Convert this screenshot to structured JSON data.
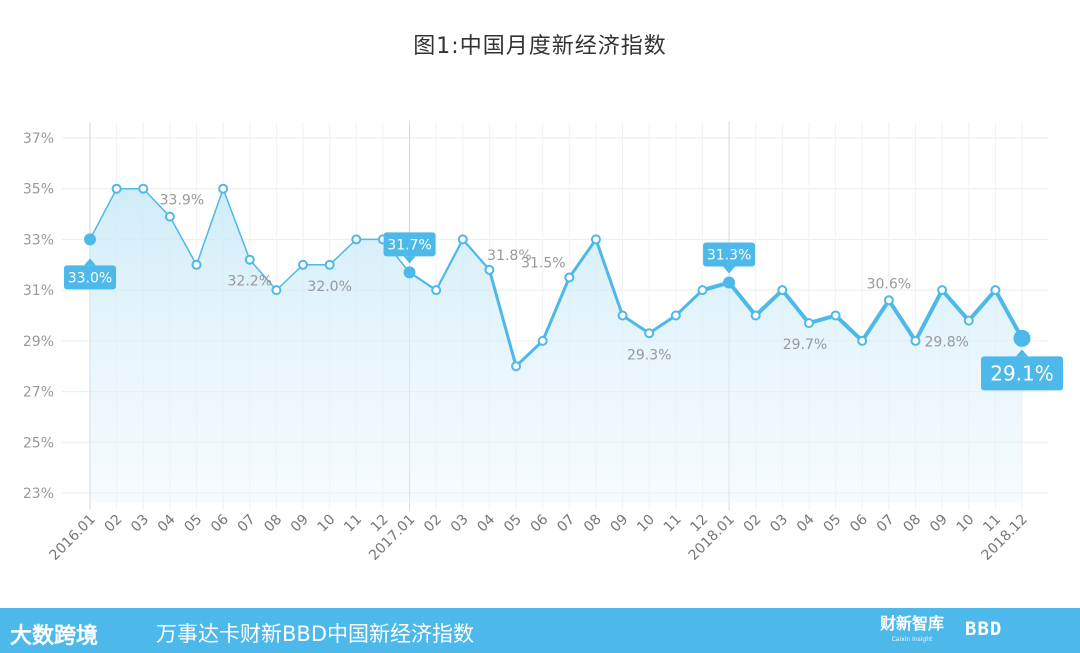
{
  "title": "图1:中国月度新经济指数",
  "footer": {
    "brand": "大数跨境",
    "subtitle": "万事达卡财新BBD中国新经济指数",
    "logo_main": "财新智库",
    "logo_sub": "Caixin Insight",
    "logo_right": "BBD"
  },
  "colors": {
    "line": "#4db8ea",
    "fill": "#c8e9f7",
    "callout": "#4db8ea",
    "footer": "#4db8ea"
  },
  "chart_data": {
    "type": "line",
    "ylim": [
      23,
      37
    ],
    "yticks": [
      23,
      25,
      27,
      29,
      31,
      33,
      35,
      37
    ],
    "ytick_labels": [
      "23%",
      "25%",
      "27%",
      "29%",
      "31%",
      "33%",
      "35%",
      "37%"
    ],
    "categories": [
      "2016.01",
      "02",
      "03",
      "04",
      "05",
      "06",
      "07",
      "08",
      "09",
      "10",
      "11",
      "12",
      "2017.01",
      "02",
      "03",
      "04",
      "05",
      "06",
      "07",
      "08",
      "09",
      "10",
      "11",
      "12",
      "2018.01",
      "02",
      "03",
      "04",
      "05",
      "06",
      "07",
      "08",
      "09",
      "10",
      "11",
      "2018.12"
    ],
    "values": [
      33.0,
      35.0,
      35.0,
      33.9,
      32.0,
      35.0,
      32.2,
      31.0,
      32.0,
      32.0,
      33.0,
      33.0,
      31.7,
      31.0,
      33.0,
      31.8,
      28.0,
      29.0,
      31.5,
      33.0,
      30.0,
      29.3,
      30.0,
      31.0,
      31.3,
      30.0,
      31.0,
      29.7,
      30.0,
      29.0,
      30.6,
      29.0,
      31.0,
      29.8,
      31.0,
      29.1
    ],
    "data_labels": [
      {
        "index": 0,
        "text": "33.0%",
        "style": "callout"
      },
      {
        "index": 3,
        "text": "33.9%",
        "style": "plain"
      },
      {
        "index": 6,
        "text": "32.2%",
        "style": "plain"
      },
      {
        "index": 9,
        "text": "32.0%",
        "style": "plain"
      },
      {
        "index": 12,
        "text": "31.7%",
        "style": "callout"
      },
      {
        "index": 15,
        "text": "31.8%",
        "style": "plain"
      },
      {
        "index": 18,
        "text": "31.5%",
        "style": "plain"
      },
      {
        "index": 21,
        "text": "29.3%",
        "style": "plain"
      },
      {
        "index": 24,
        "text": "31.3%",
        "style": "callout"
      },
      {
        "index": 27,
        "text": "29.7%",
        "style": "plain"
      },
      {
        "index": 30,
        "text": "30.6%",
        "style": "plain"
      },
      {
        "index": 33,
        "text": "29.8%",
        "style": "plain"
      },
      {
        "index": 35,
        "text": "29.1%",
        "style": "callout-large"
      }
    ],
    "year_markers": [
      0,
      12,
      24
    ],
    "grid": true
  }
}
